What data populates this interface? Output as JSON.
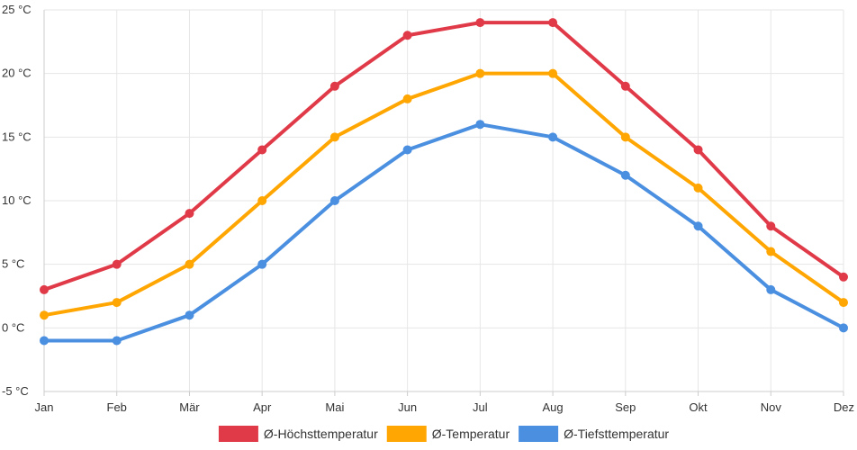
{
  "chart_data": {
    "type": "line",
    "title": "",
    "xlabel": "",
    "ylabel": "",
    "categories": [
      "Jan",
      "Feb",
      "Mär",
      "Apr",
      "Mai",
      "Jun",
      "Jul",
      "Aug",
      "Sep",
      "Okt",
      "Nov",
      "Dez"
    ],
    "y_unit": "°C",
    "ylim": [
      -5,
      25
    ],
    "y_ticks": [
      -5,
      0,
      5,
      10,
      15,
      20,
      25
    ],
    "y_tick_labels": [
      "-5 °C",
      "0 °C",
      "5 °C",
      "10 °C",
      "15 °C",
      "20 °C",
      "25 °C"
    ],
    "grid": true,
    "legend_position": "bottom-center",
    "series": [
      {
        "name": "Ø-Höchsttemperatur",
        "color": "#e03a48",
        "values": [
          3,
          5,
          9,
          14,
          19,
          23,
          24,
          24,
          19,
          14,
          8,
          4
        ]
      },
      {
        "name": "Ø-Temperatur",
        "color": "#ffa602",
        "values": [
          1,
          2,
          5,
          10,
          15,
          18,
          20,
          20,
          15,
          11,
          6,
          2
        ]
      },
      {
        "name": "Ø-Tiefsttemperatur",
        "color": "#4a8fe0",
        "values": [
          -1,
          -1,
          1,
          5,
          10,
          14,
          16,
          15,
          12,
          8,
          3,
          0
        ]
      }
    ]
  }
}
